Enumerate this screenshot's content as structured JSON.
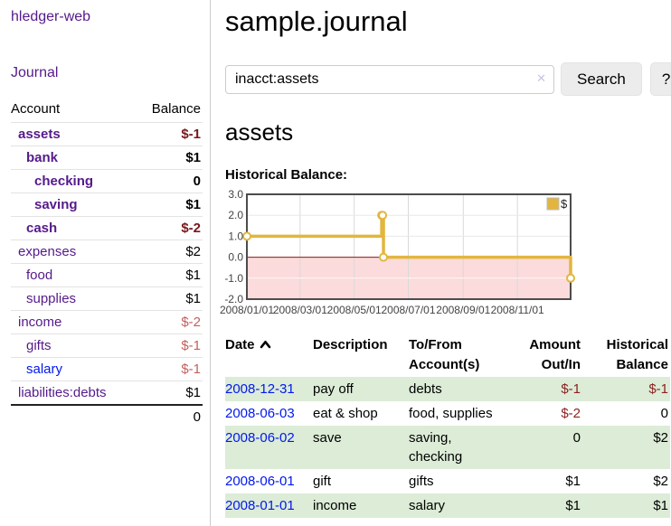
{
  "app": {
    "title": "hledger-web"
  },
  "colors": {
    "accent_purple": "#551a8b",
    "link_blue": "#0018ee",
    "negative_dark": "#77181c",
    "negative_light": "#c2605f",
    "register_negative": "#8b2222",
    "row_stripe_green": "#dcecd7",
    "chart_gold": "#e2b63e"
  },
  "sidebar": {
    "journal_link": "Journal",
    "table": {
      "headers": [
        "Account",
        "Balance"
      ],
      "rows": [
        {
          "account": "assets",
          "balance": "$-1",
          "level": 1,
          "bold": true,
          "negative": true,
          "visited": true
        },
        {
          "account": "bank",
          "balance": "$1",
          "level": 2,
          "bold": true,
          "negative": false,
          "visited": true
        },
        {
          "account": "checking",
          "balance": "0",
          "level": 3,
          "bold": true,
          "negative": false,
          "visited": true
        },
        {
          "account": "saving",
          "balance": "$1",
          "level": 3,
          "bold": true,
          "negative": false,
          "visited": true
        },
        {
          "account": "cash",
          "balance": "$-2",
          "level": 2,
          "bold": true,
          "negative": true,
          "visited": true
        },
        {
          "account": "expenses",
          "balance": "$2",
          "level": 1,
          "bold": false,
          "negative": false,
          "visited": true
        },
        {
          "account": "food",
          "balance": "$1",
          "level": 2,
          "bold": false,
          "negative": false,
          "visited": true
        },
        {
          "account": "supplies",
          "balance": "$1",
          "level": 2,
          "bold": false,
          "negative": false,
          "visited": true
        },
        {
          "account": "income",
          "balance": "$-2",
          "level": 1,
          "bold": false,
          "negative": true,
          "visited": true
        },
        {
          "account": "gifts",
          "balance": "$-1",
          "level": 2,
          "bold": false,
          "negative": true,
          "visited": true
        },
        {
          "account": "salary",
          "balance": "$-1",
          "level": 2,
          "bold": false,
          "negative": true,
          "visited": false
        },
        {
          "account": "liabilities:debts",
          "balance": "$1",
          "level": 1,
          "bold": false,
          "negative": false,
          "visited": true
        }
      ],
      "total": "0"
    }
  },
  "main": {
    "title": "sample.journal",
    "search": {
      "value": "inacct:assets",
      "clear_icon": "✕",
      "search_label": "Search",
      "help_label": "?"
    },
    "account_heading": "assets",
    "chart_label": "Historical Balance:"
  },
  "chart_data": {
    "type": "line",
    "title": "Historical Balance:",
    "legend": {
      "label": "$",
      "position": "top-right"
    },
    "series": [
      {
        "name": "$",
        "step": "after",
        "color": "#e2b63e",
        "marker": {
          "shape": "circle",
          "fill": "#ffffff"
        },
        "points": [
          {
            "x": "2008-01-01",
            "y": 1
          },
          {
            "x": "2008-06-01",
            "y": 2
          },
          {
            "x": "2008-06-02",
            "y": 2
          },
          {
            "x": "2008-06-03",
            "y": 0
          },
          {
            "x": "2008-12-31",
            "y": -1
          }
        ]
      }
    ],
    "x_range": [
      "2008-01-01",
      "2008-12-31"
    ],
    "x_ticks": [
      {
        "x": "2008-01-01",
        "label": "2008/01/01"
      },
      {
        "x": "2008-03-01",
        "label": "2008/03/01"
      },
      {
        "x": "2008-05-01",
        "label": "2008/05/01"
      },
      {
        "x": "2008-07-01",
        "label": "2008/07/01"
      },
      {
        "x": "2008-09-01",
        "label": "2008/09/01"
      },
      {
        "x": "2008-11-01",
        "label": "2008/11/01"
      }
    ],
    "y_ticks": [
      {
        "v": 3,
        "label": "3.0"
      },
      {
        "v": 2,
        "label": "2.0"
      },
      {
        "v": 1,
        "label": "1.0"
      },
      {
        "v": 0,
        "label": "0.0"
      },
      {
        "v": -1,
        "label": "-1.0"
      },
      {
        "v": -2,
        "label": "-2.0"
      }
    ],
    "ylim": [
      -2,
      3
    ],
    "grid": true,
    "zero_line_color": "#8c1717",
    "negative_region_fill": "#fbdbdb",
    "plot_border_color": "#4c4c4c"
  },
  "register": {
    "headers": {
      "date": "Date",
      "sort": "asc",
      "description": "Description",
      "account": "To/From Account(s)",
      "amount": "Amount Out/In",
      "balance": "Historical Balance"
    },
    "rows": [
      {
        "date": "2008-12-31",
        "description": "pay off",
        "accounts": "debts",
        "amount": "$-1",
        "amount_negative": true,
        "balance": "$-1",
        "balance_negative": true
      },
      {
        "date": "2008-06-03",
        "description": "eat & shop",
        "accounts": "food, supplies",
        "amount": "$-2",
        "amount_negative": true,
        "balance": "0",
        "balance_negative": false
      },
      {
        "date": "2008-06-02",
        "description": "save",
        "accounts": "saving, checking",
        "amount": "0",
        "amount_negative": false,
        "balance": "$2",
        "balance_negative": false
      },
      {
        "date": "2008-06-01",
        "description": "gift",
        "accounts": "gifts",
        "amount": "$1",
        "amount_negative": false,
        "balance": "$2",
        "balance_negative": false
      },
      {
        "date": "2008-01-01",
        "description": "income",
        "accounts": "salary",
        "amount": "$1",
        "amount_negative": false,
        "balance": "$1",
        "balance_negative": false
      }
    ]
  }
}
